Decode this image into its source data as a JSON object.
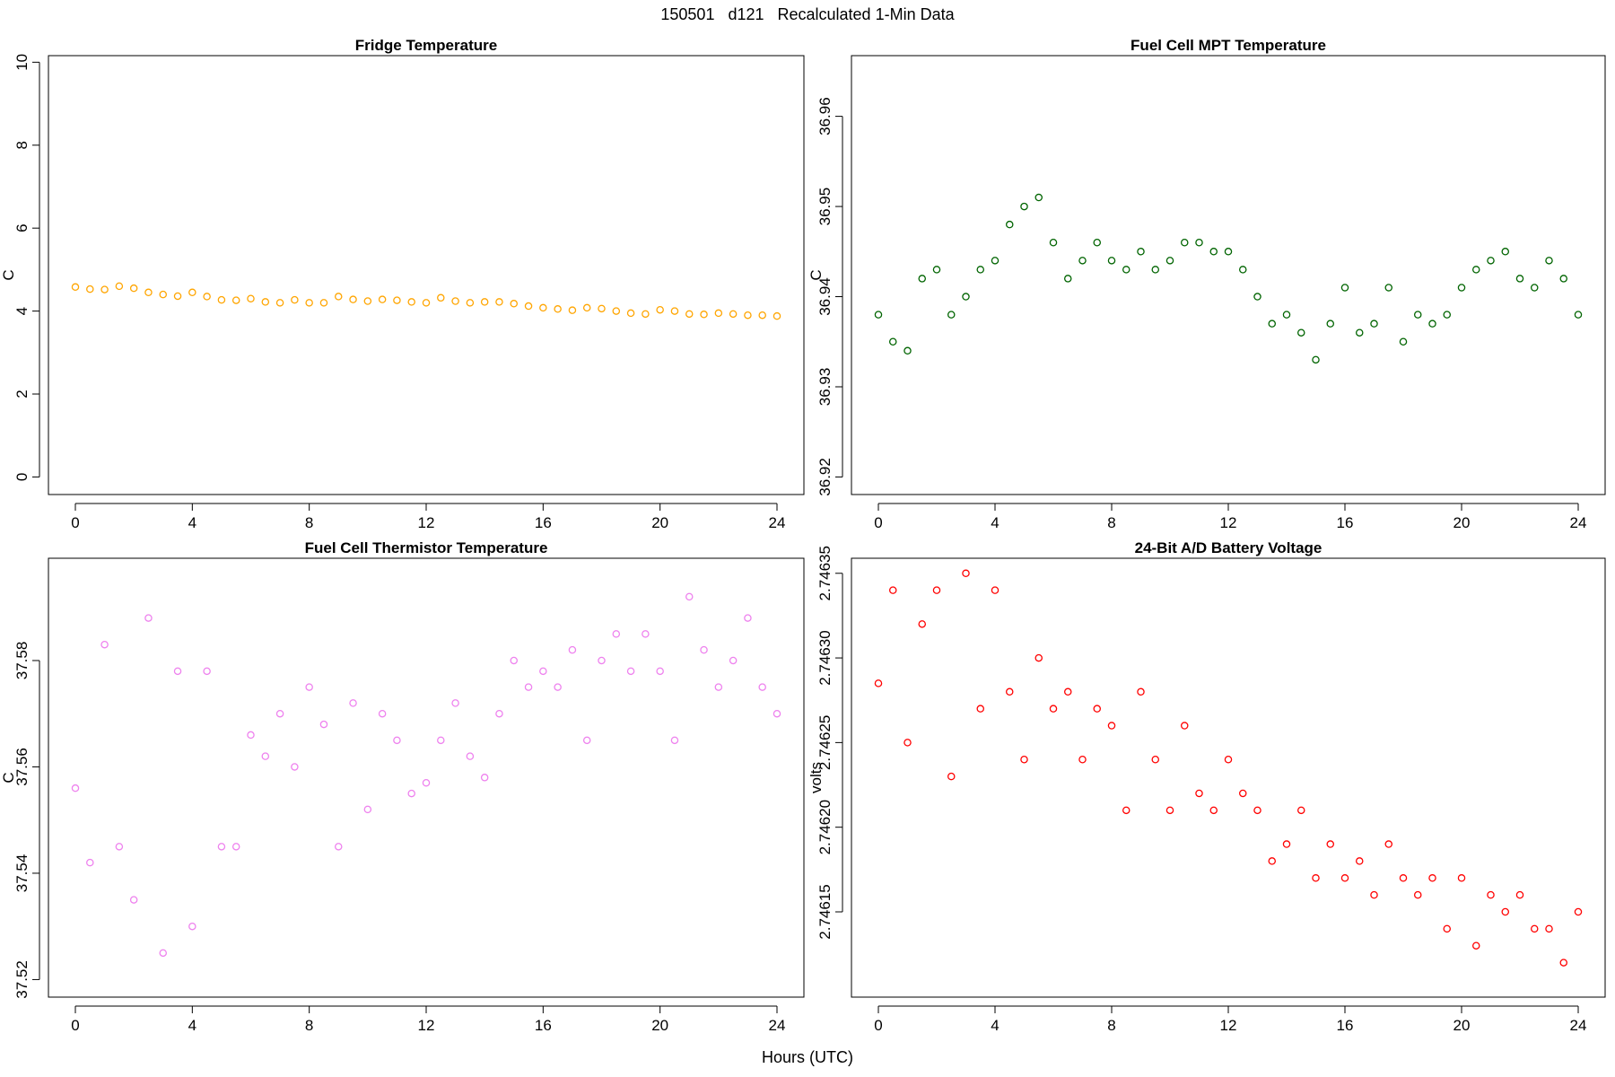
{
  "figure": {
    "title": "150501   d121   Recalculated 1-Min Data",
    "xlabel": "Hours (UTC)"
  },
  "chart_data": [
    {
      "type": "scatter",
      "title": "Fridge Temperature",
      "xlabel": "Hours (UTC)",
      "ylabel": "C",
      "xlim": [
        0,
        24
      ],
      "ylim": [
        0,
        10
      ],
      "xticks": [
        0,
        4,
        8,
        12,
        16,
        20,
        24
      ],
      "yticks": [
        0,
        2,
        4,
        6,
        8,
        10
      ],
      "ytick_labels": [
        "0",
        "2",
        "4",
        "6",
        "8",
        "10"
      ],
      "color": "#ffa500",
      "marker": "open-circle",
      "series": [
        {
          "name": "Fridge Temperature",
          "x": [
            0,
            0.5,
            1,
            1.5,
            2,
            2.5,
            3,
            3.5,
            4,
            4.5,
            5,
            5.5,
            6,
            6.5,
            7,
            7.5,
            8,
            8.5,
            9,
            9.5,
            10,
            10.5,
            11,
            11.5,
            12,
            12.5,
            13,
            13.5,
            14,
            14.5,
            15,
            15.5,
            16,
            16.5,
            17,
            17.5,
            18,
            18.5,
            19,
            19.5,
            20,
            20.5,
            21,
            21.5,
            22,
            22.5,
            23,
            23.5,
            24
          ],
          "y": [
            4.58,
            4.53,
            4.52,
            4.6,
            4.55,
            4.45,
            4.4,
            4.36,
            4.45,
            4.35,
            4.27,
            4.26,
            4.3,
            4.22,
            4.2,
            4.27,
            4.2,
            4.2,
            4.35,
            4.28,
            4.24,
            4.28,
            4.26,
            4.22,
            4.2,
            4.32,
            4.24,
            4.2,
            4.22,
            4.22,
            4.18,
            4.12,
            4.08,
            4.05,
            4.02,
            4.08,
            4.06,
            4.0,
            3.95,
            3.93,
            4.03,
            4.0,
            3.93,
            3.92,
            3.95,
            3.93,
            3.9,
            3.9,
            3.88
          ]
        }
      ]
    },
    {
      "type": "scatter",
      "title": "Fuel Cell MPT Temperature",
      "xlabel": "Hours (UTC)",
      "ylabel": "C",
      "xlim": [
        0,
        24
      ],
      "ylim": [
        36.92,
        36.966
      ],
      "xticks": [
        0,
        4,
        8,
        12,
        16,
        20,
        24
      ],
      "yticks": [
        36.92,
        36.93,
        36.94,
        36.95,
        36.96
      ],
      "ytick_labels": [
        "36.92",
        "36.93",
        "36.94",
        "36.95",
        "36.96"
      ],
      "color": "#006400",
      "marker": "open-circle",
      "series": [
        {
          "name": "Fuel Cell MPT Temperature",
          "x": [
            0,
            0.5,
            1,
            1.5,
            2,
            2.5,
            3,
            3.5,
            4,
            4.5,
            5,
            5.5,
            6,
            6.5,
            7,
            7.5,
            8,
            8.5,
            9,
            9.5,
            10,
            10.5,
            11,
            11.5,
            12,
            12.5,
            13,
            13.5,
            14,
            14.5,
            15,
            15.5,
            16,
            16.5,
            17,
            17.5,
            18,
            18.5,
            19,
            19.5,
            20,
            20.5,
            21,
            21.5,
            22,
            22.5,
            23,
            23.5,
            24
          ],
          "y": [
            36.938,
            36.935,
            36.934,
            36.942,
            36.943,
            36.938,
            36.94,
            36.943,
            36.944,
            36.948,
            36.95,
            36.951,
            36.946,
            36.942,
            36.944,
            36.946,
            36.944,
            36.943,
            36.945,
            36.943,
            36.944,
            36.946,
            36.946,
            36.945,
            36.945,
            36.943,
            36.94,
            36.937,
            36.938,
            36.936,
            36.933,
            36.937,
            36.941,
            36.936,
            36.937,
            36.941,
            36.935,
            36.938,
            36.937,
            36.938,
            36.941,
            36.943,
            36.944,
            36.945,
            36.942,
            36.941,
            36.944,
            36.942,
            36.938
          ]
        }
      ]
    },
    {
      "type": "scatter",
      "title": "Fuel Cell Thermistor Temperature",
      "xlabel": "Hours (UTC)",
      "ylabel": "C",
      "xlim": [
        0,
        24
      ],
      "ylim": [
        37.52,
        37.598
      ],
      "xticks": [
        0,
        4,
        8,
        12,
        16,
        20,
        24
      ],
      "yticks": [
        37.52,
        37.54,
        37.56,
        37.58
      ],
      "ytick_labels": [
        "37.52",
        "37.54",
        "37.56",
        "37.58"
      ],
      "color": "#ee82ee",
      "marker": "open-circle",
      "series": [
        {
          "name": "Fuel Cell Thermistor Temperature",
          "x": [
            0,
            0.5,
            1,
            1.5,
            2,
            2.5,
            3,
            3.5,
            4,
            4.5,
            5,
            5.5,
            6,
            6.5,
            7,
            7.5,
            8,
            8.5,
            9,
            9.5,
            10,
            10.5,
            11,
            11.5,
            12,
            12.5,
            13,
            13.5,
            14,
            14.5,
            15,
            15.5,
            16,
            16.5,
            17,
            17.5,
            18,
            18.5,
            19,
            19.5,
            20,
            20.5,
            21,
            21.5,
            22,
            22.5,
            23,
            23.5,
            24
          ],
          "y": [
            37.556,
            37.542,
            37.583,
            37.545,
            37.535,
            37.588,
            37.525,
            37.578,
            37.53,
            37.578,
            37.545,
            37.545,
            37.566,
            37.562,
            37.57,
            37.56,
            37.575,
            37.568,
            37.545,
            37.572,
            37.552,
            37.57,
            37.565,
            37.555,
            37.557,
            37.565,
            37.572,
            37.562,
            37.558,
            37.57,
            37.58,
            37.575,
            37.578,
            37.575,
            37.582,
            37.565,
            37.58,
            37.585,
            37.578,
            37.585,
            37.578,
            37.565,
            37.592,
            37.582,
            37.575,
            37.58,
            37.588,
            37.575,
            37.57
          ]
        }
      ]
    },
    {
      "type": "scatter",
      "title": "24-Bit A/D Battery Voltage",
      "xlabel": "Hours (UTC)",
      "ylabel": "volts",
      "xlim": [
        0,
        24
      ],
      "ylim": [
        2.74611,
        2.746355
      ],
      "xticks": [
        0,
        4,
        8,
        12,
        16,
        20,
        24
      ],
      "yticks": [
        2.74615,
        2.7462,
        2.74625,
        2.7463,
        2.74635
      ],
      "ytick_labels": [
        "2.74615",
        "2.74620",
        "2.74625",
        "2.74630",
        "2.74635"
      ],
      "color": "#ff0000",
      "marker": "open-circle",
      "series": [
        {
          "name": "24-Bit A/D Battery Voltage",
          "x": [
            0,
            0.5,
            1,
            1.5,
            2,
            2.5,
            3,
            3.5,
            4,
            4.5,
            5,
            5.5,
            6,
            6.5,
            7,
            7.5,
            8,
            8.5,
            9,
            9.5,
            10,
            10.5,
            11,
            11.5,
            12,
            12.5,
            13,
            13.5,
            14,
            14.5,
            15,
            15.5,
            16,
            16.5,
            17,
            17.5,
            18,
            18.5,
            19,
            19.5,
            20,
            20.5,
            21,
            21.5,
            22,
            22.5,
            23,
            23.5,
            24
          ],
          "y": [
            2.746285,
            2.74634,
            2.74625,
            2.74632,
            2.74634,
            2.74623,
            2.74635,
            2.74627,
            2.74634,
            2.74628,
            2.74624,
            2.7463,
            2.74627,
            2.74628,
            2.74624,
            2.74627,
            2.74626,
            2.74621,
            2.74628,
            2.74624,
            2.74621,
            2.74626,
            2.74622,
            2.74621,
            2.74624,
            2.74622,
            2.74621,
            2.74618,
            2.74619,
            2.74621,
            2.74617,
            2.74619,
            2.74617,
            2.74618,
            2.74616,
            2.74619,
            2.74617,
            2.74616,
            2.74617,
            2.74614,
            2.74617,
            2.74613,
            2.74616,
            2.74615,
            2.74616,
            2.74614,
            2.74614,
            2.74612,
            2.74615
          ]
        }
      ]
    }
  ]
}
